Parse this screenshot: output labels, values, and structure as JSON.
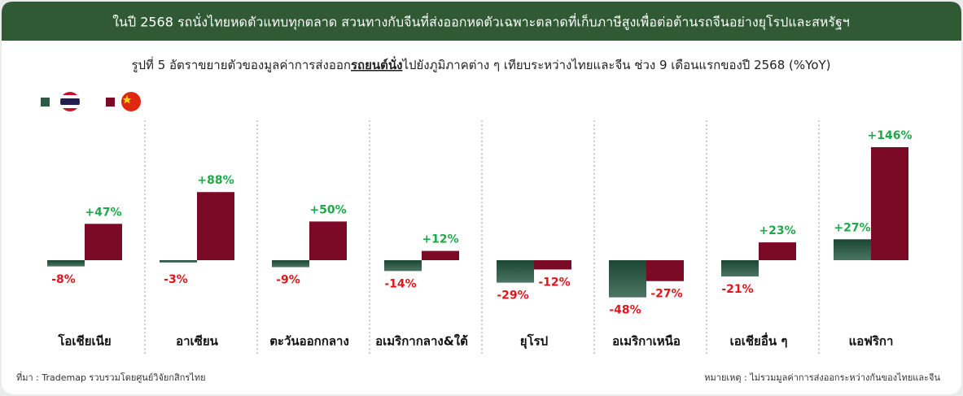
{
  "banner": "ในปี 2568 รถนั่งไทยหดตัวแทบทุกตลาด สวนทางกับจีนที่ส่งออกหดตัวเฉพาะตลาดที่เก็บภาษีสูงเพื่อต่อต้านรถจีนอย่างยุโรปและสหรัฐฯ",
  "chart_data": {
    "type": "bar",
    "subtitle": [
      "รูปที่ 5 อัตราขยายตัวของมูลค่าการส่งออก",
      "รถยนต์นั่ง",
      "ไปยังภูมิภาคต่าง ๆ เทียบระหว่างไทยและจีน ช่วง 9 เดือนแรกของปี 2568 (%YoY)"
    ],
    "categories": [
      "โอเชียเนีย",
      "อาเซียน",
      "ตะวันออกกลาง",
      "อเมริกากลาง&ใต้",
      "ยุโรป",
      "อเมริกาเหนือ",
      "เอเชียอื่น ๆ",
      "แอฟริกา"
    ],
    "series": [
      {
        "color": "#2d5a44",
        "values": [
          -8,
          -3,
          -9,
          -14,
          -29,
          -48,
          -21,
          27
        ],
        "value_labels": [
          "-8%",
          "-3%",
          "-9%",
          "-14%",
          "-29%",
          "-48%",
          "-21%",
          "+27%"
        ]
      },
      {
        "color": "#7a0a26",
        "values": [
          47,
          88,
          50,
          12,
          -12,
          -27,
          23,
          146
        ],
        "value_labels": [
          "+47%",
          "+88%",
          "+50%",
          "+12%",
          "-12%",
          "-27%",
          "+23%",
          "+146%"
        ]
      }
    ],
    "positive_color": "#1fa84a",
    "negative_color": "#e0161b"
  },
  "source": "ที่มา : Trademap รวบรวมโดยศูนย์วิจัยกสิกรไทย",
  "note": "หมายเหตุ : ไม่รวมมูลค่าการส่งออกระหว่างกันของไทยและจีน"
}
